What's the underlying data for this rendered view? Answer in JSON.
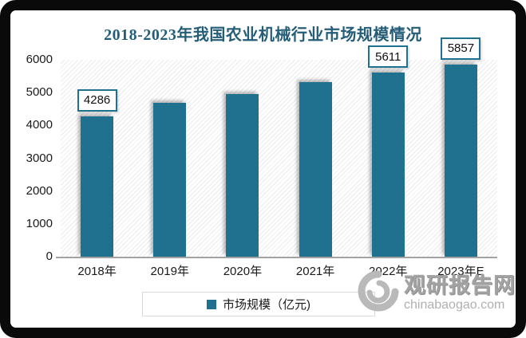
{
  "figure": {
    "title_color": "#245d78",
    "axis_text_color": "#1a1a1a",
    "axis_line_color": "#a3a3a3"
  },
  "chart_data": {
    "type": "bar",
    "title": "2018-2023年我国农业机械行业市场规模情况",
    "categories": [
      "2018年",
      "2019年",
      "2020年",
      "2021年",
      "2022年",
      "2023年E"
    ],
    "values": [
      4286,
      4680,
      4960,
      5310,
      5611,
      5857
    ],
    "label_shown": [
      true,
      false,
      false,
      false,
      true,
      true
    ],
    "labeled_values": {
      "2018年": 4286,
      "2022年": 5611,
      "2023年E": 5857
    },
    "xlabel": "",
    "ylabel": "",
    "ylim": [
      0,
      6000
    ],
    "yticks": [
      0,
      1000,
      2000,
      3000,
      4000,
      5000,
      6000
    ],
    "grid": false,
    "legend_position": "bottom",
    "legend_label": "市场规模（亿元)",
    "bar_color": "#20708f"
  },
  "watermark": {
    "site_name": "观研报告网",
    "site_url": "chinabaogao.com"
  }
}
